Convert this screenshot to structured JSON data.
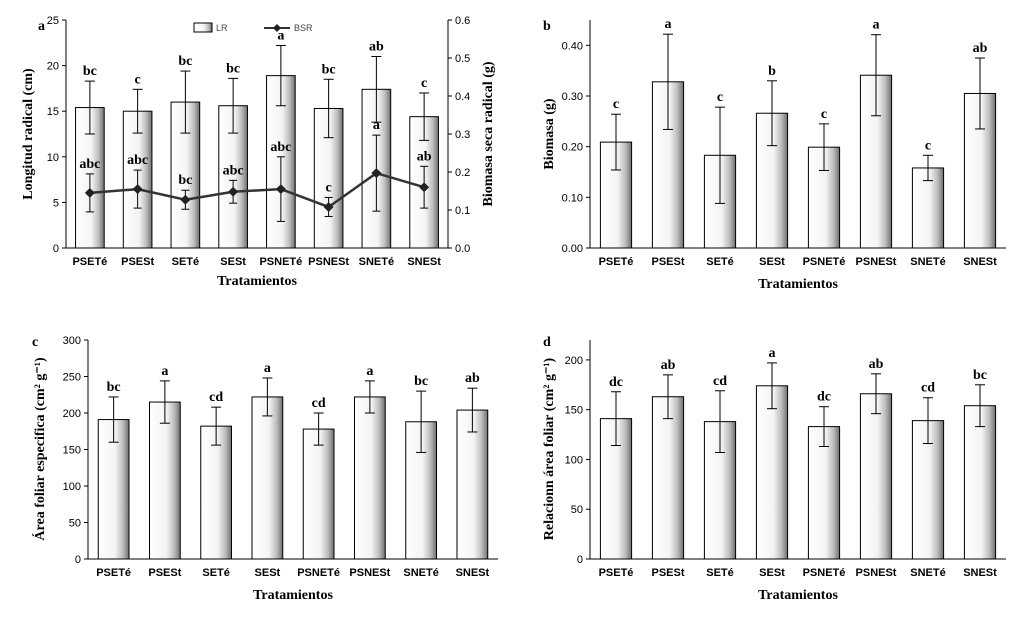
{
  "chart_data": [
    {
      "panel": "a",
      "type": "bar",
      "categories": [
        "PSETé",
        "PSESt",
        "SETé",
        "SESt",
        "PSNETé",
        "PSNESt",
        "SNETé",
        "SNESt"
      ],
      "xlabel": "Tratamientos",
      "ylabel": "Longitud radical (cm)",
      "ylabel_right": "Biomasa seca radical (g)",
      "ylim": [
        0,
        25
      ],
      "yticks": [
        "0",
        "5",
        "10",
        "15",
        "20",
        "25"
      ],
      "ylim_right": [
        0,
        0.6
      ],
      "yticks_right": [
        "0.0",
        "0.1",
        "0.2",
        "0.3",
        "0.4",
        "0.5",
        "0.6"
      ],
      "legend": [
        "LR",
        "BSR"
      ],
      "legend_position": "top",
      "series": [
        {
          "name": "LR",
          "type": "bar",
          "values": [
            15.4,
            15.0,
            16.0,
            15.6,
            18.9,
            15.3,
            17.4,
            14.4
          ],
          "errors": [
            2.9,
            2.4,
            3.4,
            3.0,
            3.3,
            3.2,
            3.6,
            2.6
          ],
          "letters": [
            "bc",
            "c",
            "bc",
            "bc",
            "a",
            "bc",
            "ab",
            "c"
          ]
        },
        {
          "name": "BSR",
          "type": "line",
          "axis": "right",
          "values": [
            0.145,
            0.155,
            0.127,
            0.148,
            0.155,
            0.108,
            0.197,
            0.16
          ],
          "errors": [
            0.05,
            0.05,
            0.025,
            0.03,
            0.085,
            0.025,
            0.1,
            0.055
          ],
          "letters": [
            "abc",
            "abc",
            "bc",
            "abc",
            "abc",
            "c",
            "a",
            "ab"
          ]
        }
      ]
    },
    {
      "panel": "b",
      "type": "bar",
      "categories": [
        "PSETé",
        "PSESt",
        "SETé",
        "SESt",
        "PSNETé",
        "PSNESt",
        "SNETé",
        "SNESt"
      ],
      "xlabel": "Tratamientos",
      "ylabel": "Biomasa (g)",
      "ylim": [
        0,
        0.45
      ],
      "yticks": [
        "0.00",
        "0.10",
        "0.20",
        "0.30",
        "0.40"
      ],
      "series": [
        {
          "values": [
            0.209,
            0.328,
            0.183,
            0.266,
            0.199,
            0.341,
            0.158,
            0.305
          ],
          "errors": [
            0.055,
            0.094,
            0.095,
            0.064,
            0.046,
            0.08,
            0.025,
            0.07
          ],
          "letters": [
            "c",
            "a",
            "c",
            "b",
            "c",
            "a",
            "c",
            "ab"
          ]
        }
      ]
    },
    {
      "panel": "c",
      "type": "bar",
      "categories": [
        "PSETé",
        "PSESt",
        "SETé",
        "SESt",
        "PSNETé",
        "PSNESt",
        "SNETé",
        "SNESt"
      ],
      "xlabel": "Tratamientos",
      "ylabel": "Área foliar especifica (cm² g⁻¹)",
      "ylim": [
        0,
        300
      ],
      "yticks": [
        "0",
        "50",
        "100",
        "150",
        "200",
        "250",
        "300"
      ],
      "series": [
        {
          "values": [
            191,
            215,
            182,
            222,
            178,
            222,
            188,
            204
          ],
          "errors": [
            31,
            29,
            26,
            26,
            22,
            22,
            42,
            30
          ],
          "letters": [
            "bc",
            "a",
            "cd",
            "a",
            "cd",
            "a",
            "bc",
            "ab"
          ]
        }
      ]
    },
    {
      "panel": "d",
      "type": "bar",
      "categories": [
        "PSETé",
        "PSESt",
        "SETé",
        "SESt",
        "PSNETé",
        "PSNESt",
        "SNETé",
        "SNESt"
      ],
      "xlabel": "Tratamientos",
      "ylabel": "Relacionn área foliar  (cm² g⁻¹)",
      "ylim": [
        0,
        220
      ],
      "yticks": [
        "0",
        "50",
        "100",
        "150",
        "200"
      ],
      "series": [
        {
          "values": [
            141,
            163,
            138,
            174,
            133,
            166,
            139,
            154
          ],
          "errors": [
            27,
            22,
            31,
            23,
            20,
            20,
            23,
            21
          ],
          "letters": [
            "dc",
            "ab",
            "cd",
            "a",
            "dc",
            "ab",
            "cd",
            "bc"
          ]
        }
      ]
    }
  ]
}
